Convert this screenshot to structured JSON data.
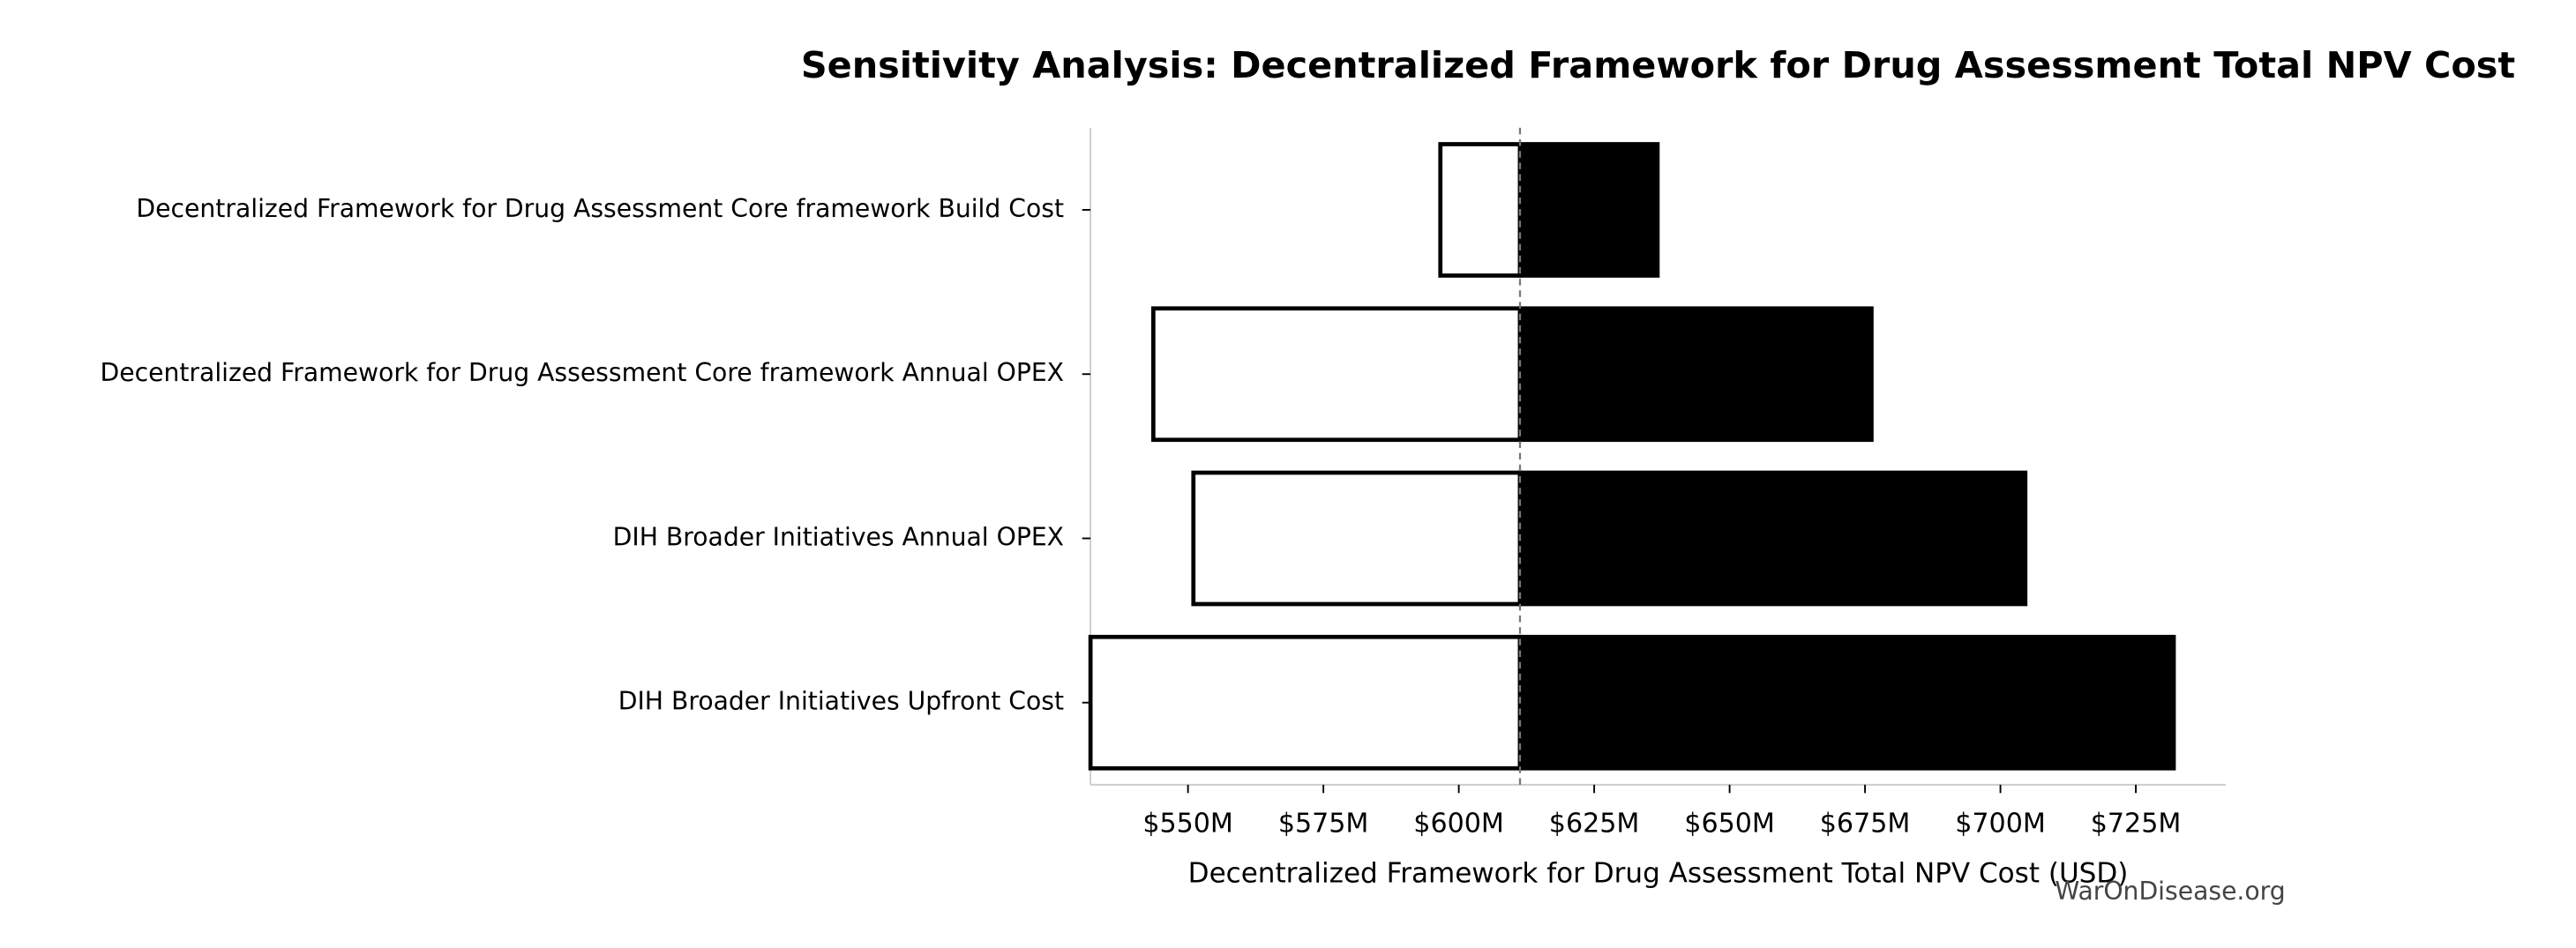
{
  "chart_data": {
    "type": "tornado",
    "title": "Sensitivity Analysis: Decentralized Framework for Drug Assessment Total NPV Cost",
    "x_label": "Decentralized Framework for Drug Assessment Total NPV Cost (USD)",
    "watermark": "WarOnDisease.org",
    "categories": [
      "Decentralized Framework for Drug Assessment Core framework Build Cost",
      "Decentralized Framework for Drug Assessment Core framework Annual OPEX",
      "DIH Broader Initiatives Annual OPEX",
      "DIH Broader Initiatives Upfront Cost"
    ],
    "baseline": 611.3,
    "series": [
      {
        "color": "#ffffff",
        "values": [
          596.6,
          543.6,
          551.0,
          532.0
        ]
      },
      {
        "color": "#000000",
        "values": [
          636.7,
          676.2,
          704.6,
          732.0
        ]
      }
    ],
    "xlim": [
      532,
      741.6
    ],
    "xticks": [
      {
        "value": 550,
        "label": "$550M"
      },
      {
        "value": 575,
        "label": "$575M"
      },
      {
        "value": 600,
        "label": "$600M"
      },
      {
        "value": 625,
        "label": "$625M"
      },
      {
        "value": 650,
        "label": "$650M"
      },
      {
        "value": 675,
        "label": "$675M"
      },
      {
        "value": 700,
        "label": "$700M"
      },
      {
        "value": 725,
        "label": "$725M"
      }
    ]
  }
}
